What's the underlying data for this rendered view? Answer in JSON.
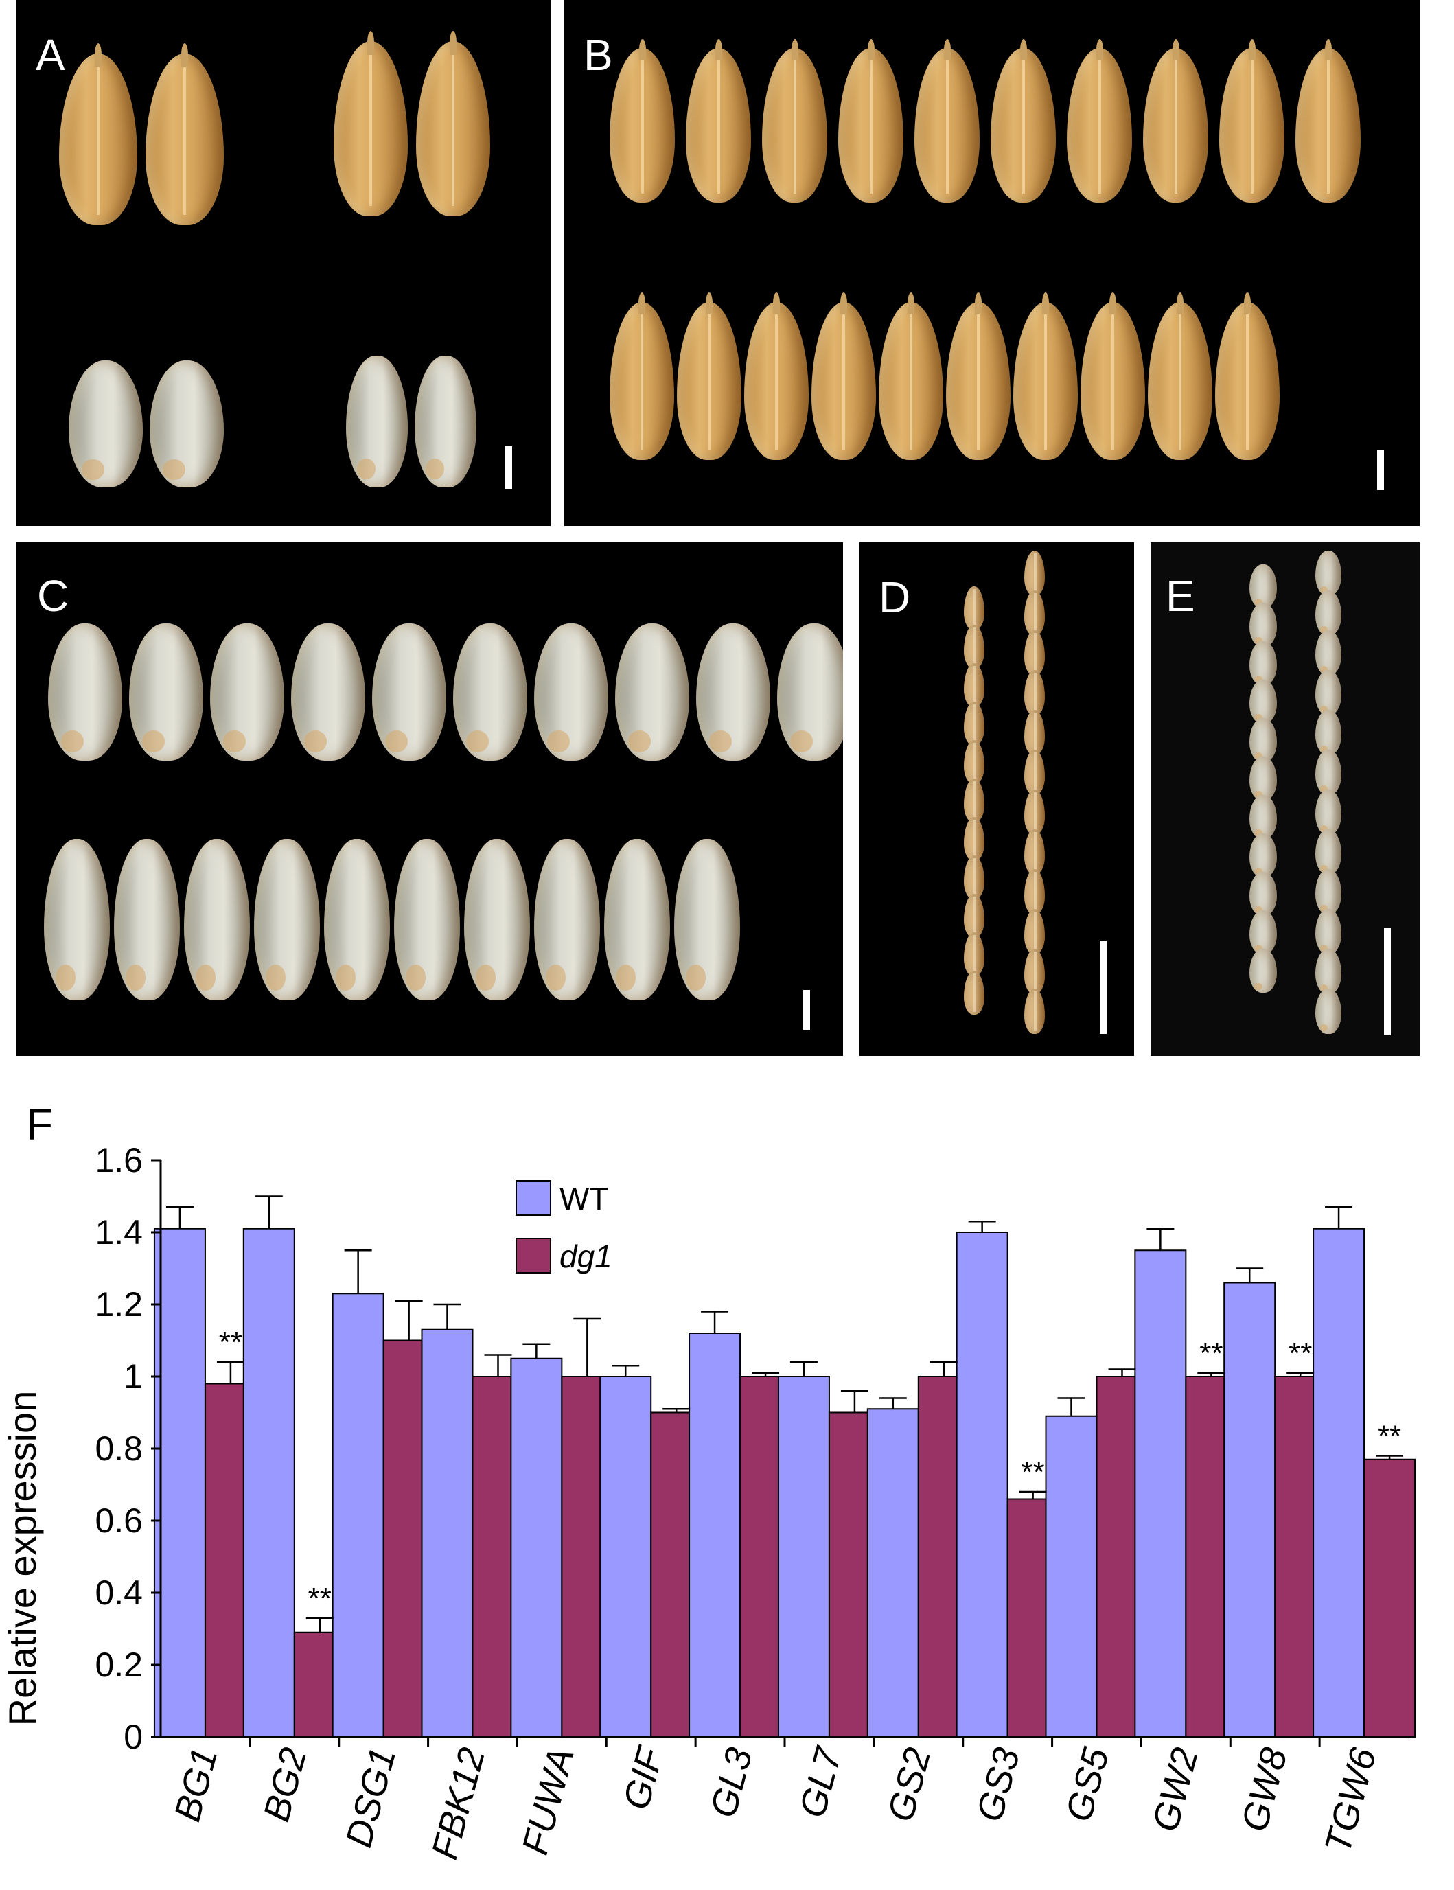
{
  "panels": {
    "a": {
      "label": "A"
    },
    "b": {
      "label": "B"
    },
    "c": {
      "label": "C"
    },
    "d": {
      "label": "D"
    },
    "e": {
      "label": "E"
    },
    "f": {
      "label": "F"
    }
  },
  "colors": {
    "wt": "#9999ff",
    "dg1": "#993366",
    "photo_bg": "#000000"
  },
  "chart_data": {
    "type": "bar",
    "ylabel": "Relative expression",
    "ylim": [
      0,
      1.6
    ],
    "yticks": [
      "0",
      "0.2",
      "0.4",
      "0.6",
      "0.8",
      "1",
      "1.2",
      "1.4",
      "1.6"
    ],
    "ytick_values": [
      0,
      0.2,
      0.4,
      0.6,
      0.8,
      1.0,
      1.2,
      1.4,
      1.6
    ],
    "categories": [
      "BG1",
      "BG2",
      "DSG1",
      "FBK12",
      "FUWA",
      "GIF",
      "GL3",
      "GL7",
      "GS2",
      "GS3",
      "GS5",
      "GW2",
      "GW8",
      "TGW6"
    ],
    "series": [
      {
        "name": "WT",
        "values": [
          1.41,
          1.41,
          1.23,
          1.13,
          1.05,
          1.0,
          1.12,
          1.0,
          0.91,
          1.4,
          0.89,
          1.35,
          1.26,
          1.41
        ],
        "errors": [
          0.06,
          0.09,
          0.12,
          0.07,
          0.04,
          0.03,
          0.06,
          0.04,
          0.03,
          0.03,
          0.05,
          0.06,
          0.04,
          0.06
        ]
      },
      {
        "name": "dg1",
        "values": [
          0.98,
          0.29,
          1.1,
          1.0,
          1.0,
          0.9,
          1.0,
          0.9,
          1.0,
          0.66,
          1.0,
          1.0,
          1.0,
          0.77
        ],
        "errors": [
          0.06,
          0.04,
          0.11,
          0.06,
          0.16,
          0.01,
          0.01,
          0.06,
          0.04,
          0.02,
          0.02,
          0.01,
          0.01,
          0.01
        ]
      }
    ],
    "significance": [
      "**",
      "**",
      "",
      "",
      "",
      "",
      "",
      "",
      "",
      "**",
      "",
      "**",
      "**",
      "**"
    ],
    "legend": {
      "position": "top-center",
      "entries": [
        "WT",
        "dg1"
      ]
    }
  }
}
